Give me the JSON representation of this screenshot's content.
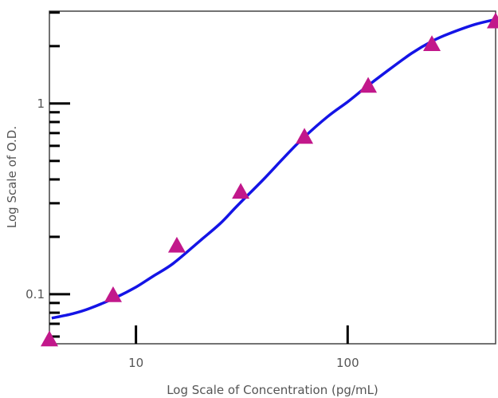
{
  "chart_data": {
    "type": "scatter",
    "title": "",
    "xlabel": "Log Scale of Concentration (pg/mL)",
    "ylabel": "Log Scale of O.D.",
    "x_scale": "log",
    "y_scale": "log",
    "xlim": [
      3.9,
      500
    ],
    "ylim": [
      0.055,
      3.05
    ],
    "grid": false,
    "legend": "none",
    "x_tick_labels": [
      {
        "value": 10,
        "label": "10"
      },
      {
        "value": 100,
        "label": "100"
      }
    ],
    "y_tick_labels": [
      {
        "value": 0.1,
        "label": "0.1"
      },
      {
        "value": 1,
        "label": "1"
      }
    ],
    "series": [
      {
        "marker": "triangle",
        "color": "#C2188B",
        "x": [
          3.9,
          7.8,
          15.6,
          31.25,
          62.5,
          125,
          250,
          500
        ],
        "y": [
          0.058,
          0.099,
          0.18,
          0.345,
          0.67,
          1.24,
          2.05,
          2.7
        ]
      },
      {
        "line": "fitted-curve",
        "color": "#1414E6",
        "x": [
          4,
          5,
          6,
          8,
          10,
          12,
          15,
          20,
          25,
          30,
          40,
          50,
          60,
          80,
          100,
          120,
          150,
          200,
          250,
          300,
          400,
          500
        ],
        "y": [
          0.075,
          0.079,
          0.084,
          0.096,
          0.109,
          0.124,
          0.145,
          0.19,
          0.235,
          0.29,
          0.4,
          0.52,
          0.64,
          0.85,
          1.02,
          1.2,
          1.45,
          1.83,
          2.12,
          2.32,
          2.6,
          2.76
        ]
      }
    ]
  }
}
